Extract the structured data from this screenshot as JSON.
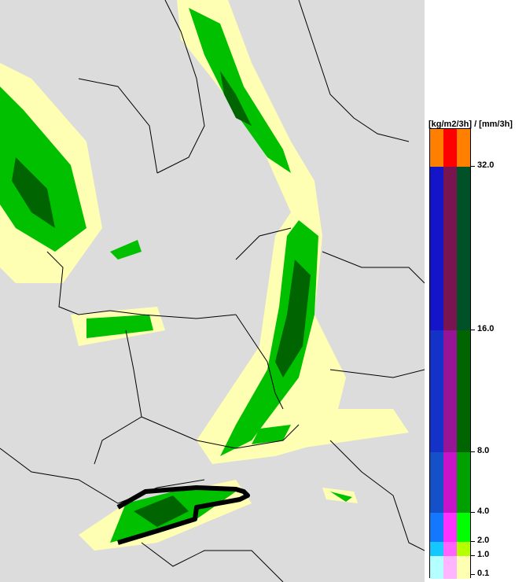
{
  "legend": {
    "unit_label": "[kg/m2/3h] / [mm/3h]",
    "tick_labels": [
      "32.0",
      "16.0",
      "8.0",
      "4.0",
      "2.0",
      "1.0",
      "0.1"
    ],
    "bands": [
      {
        "range": "> 32.0",
        "colors": [
          "#ff8000",
          "#ff0000",
          "#ff8000"
        ]
      },
      {
        "range": "16.0-32.0",
        "colors": [
          "#1414c8",
          "#781450",
          "#005028"
        ]
      },
      {
        "range": "8.0-16.0",
        "colors": [
          "#1432c8",
          "#961496",
          "#006400"
        ]
      },
      {
        "range": "4.0-8.0",
        "colors": [
          "#1450c8",
          "#c814c8",
          "#00a000"
        ]
      },
      {
        "range": "2.0-4.0",
        "colors": [
          "#1478ff",
          "#ff32ff",
          "#00ff00"
        ]
      },
      {
        "range": "1.0-2.0",
        "colors": [
          "#14c8ff",
          "#ff64ff",
          "#b4ff00"
        ]
      },
      {
        "range": "0.1-1.0",
        "colors": [
          "#b4ffff",
          "#ffb4ff",
          "#ffffb4"
        ]
      }
    ]
  },
  "map": {
    "background_color": "#dcdcdc",
    "border_color": "#000000",
    "highlight_contour_color": "#000000"
  }
}
